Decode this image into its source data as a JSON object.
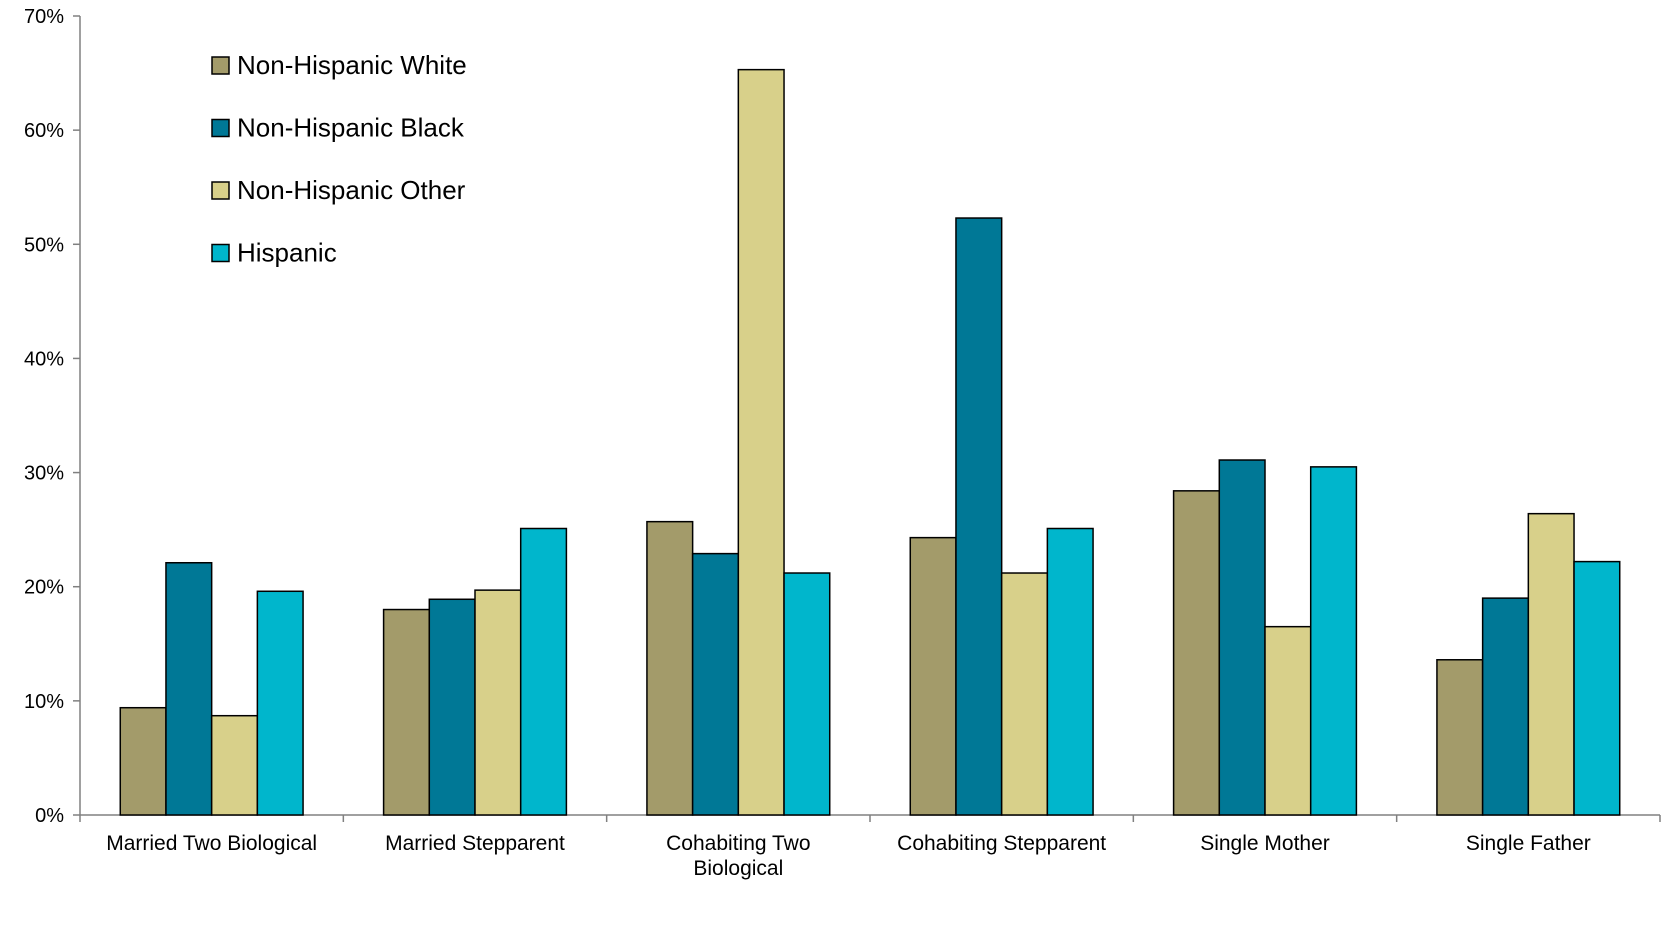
{
  "colors": {
    "Non-Hispanic White": "#a39b6a",
    "Non-Hispanic Black": "#007896",
    "Non-Hispanic Other": "#d8d08a",
    "Hispanic": "#00b6cc"
  },
  "chart_data": {
    "type": "bar",
    "title": "",
    "xlabel": "",
    "ylabel": "",
    "ylim": [
      0,
      70
    ],
    "y_ticks": [
      "0%",
      "10%",
      "20%",
      "30%",
      "40%",
      "50%",
      "60%",
      "70%"
    ],
    "y_unit": "%",
    "grid": false,
    "legend_position": "top-left",
    "categories": [
      [
        "Married Two Biological"
      ],
      [
        "Married Stepparent"
      ],
      [
        "Cohabiting Two",
        "Biological"
      ],
      [
        "Cohabiting Stepparent"
      ],
      [
        "Single Mother"
      ],
      [
        "Single Father"
      ]
    ],
    "series": [
      {
        "name": "Non-Hispanic White",
        "values": [
          9.4,
          18.0,
          25.7,
          24.3,
          28.4,
          13.6
        ]
      },
      {
        "name": "Non-Hispanic Black",
        "values": [
          22.1,
          18.9,
          22.9,
          52.3,
          31.1,
          19.0
        ]
      },
      {
        "name": "Non-Hispanic Other",
        "values": [
          8.7,
          19.7,
          65.3,
          21.2,
          16.5,
          26.4
        ]
      },
      {
        "name": "Hispanic",
        "values": [
          19.6,
          25.1,
          21.2,
          25.1,
          30.5,
          22.2
        ]
      }
    ]
  }
}
